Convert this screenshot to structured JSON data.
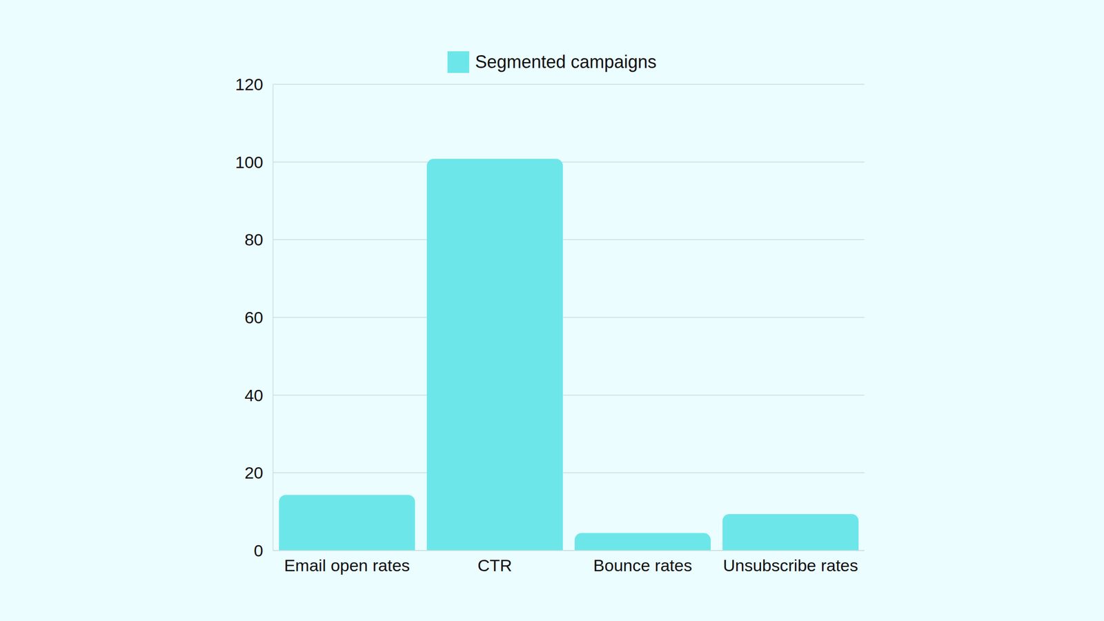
{
  "chart_data": {
    "type": "bar",
    "categories": [
      "Email open rates",
      "CTR",
      "Bounce rates",
      "Unsubscribe rates"
    ],
    "series": [
      {
        "name": "Segmented campaigns",
        "color": "#6de6ea",
        "values": [
          14.3,
          100.8,
          4.5,
          9.4
        ]
      }
    ],
    "ylim": [
      0,
      120
    ],
    "yticks": [
      0,
      20,
      40,
      60,
      80,
      100,
      120
    ],
    "grid": true,
    "legend": "top"
  }
}
